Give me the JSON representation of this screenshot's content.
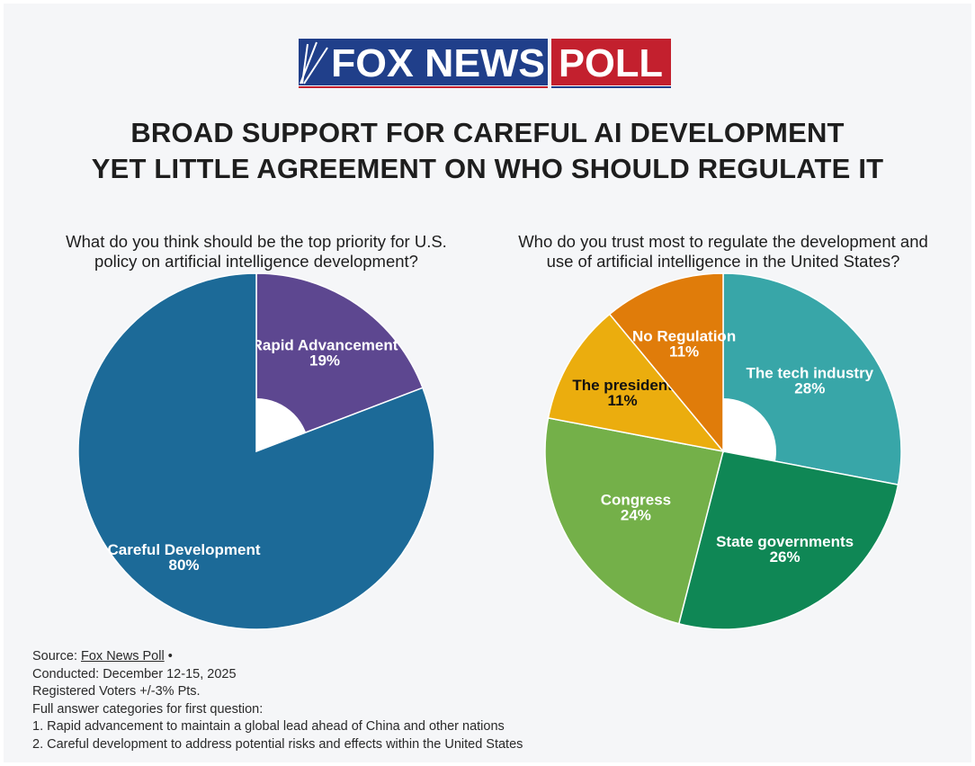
{
  "logo": {
    "brand": "FOX NEWS",
    "tag": "POLL"
  },
  "headline": {
    "line1": "BROAD SUPPORT FOR CAREFUL AI DEVELOPMENT",
    "line2": "YET LITTLE AGREEMENT ON WHO SHOULD REGULATE IT"
  },
  "colors": {
    "careful": "#1c6a98",
    "rapid": "#5d4790",
    "tech": "#38a6a8",
    "state": "#0f8755",
    "congress": "#74b049",
    "president": "#ebad0e",
    "noreg": "#e07c0a",
    "logo_blue": "#203f8a",
    "logo_red": "#c3202e"
  },
  "chart_data": [
    {
      "type": "pie",
      "title": "What do you think should be the top priority for U.S. policy on artificial intelligence development?",
      "title_lines": [
        "What do you think should be the top priority for U.S.",
        "policy on artificial intelligence development?"
      ],
      "categories": [
        "Rapid Advancement",
        "Careful Development"
      ],
      "values": [
        19,
        80
      ],
      "value_labels": [
        "19%",
        "80%"
      ],
      "colors": [
        "#5d4790",
        "#1c6a98"
      ],
      "label_colors": [
        "#ffffff",
        "#ffffff"
      ]
    },
    {
      "type": "pie",
      "title": "Who do you trust most to regulate the development and use of artificial intelligence in the United States?",
      "title_lines": [
        "Who do you trust most to regulate the development and",
        "use of artificial intelligence in the United States?"
      ],
      "categories": [
        "The tech industry",
        "State governments",
        "Congress",
        "The president",
        "No Regulation"
      ],
      "values": [
        28,
        26,
        24,
        11,
        11
      ],
      "value_labels": [
        "28%",
        "26%",
        "24%",
        "11%",
        "11%"
      ],
      "colors": [
        "#38a6a8",
        "#0f8755",
        "#74b049",
        "#ebad0e",
        "#e07c0a"
      ],
      "label_colors": [
        "#ffffff",
        "#ffffff",
        "#ffffff",
        "#111111",
        "#ffffff"
      ]
    }
  ],
  "footer": {
    "source_prefix": "Source: ",
    "source_link": "Fox News Poll",
    "source_suffix": " •",
    "conducted": "Conducted: December 12-15, 2025",
    "voters": "Registered Voters +/-3% Pts.",
    "note_heading": "Full answer categories for first question:",
    "note1": "1. Rapid advancement to maintain a global lead ahead of China and other nations",
    "note2": "2. Careful development to address potential risks and effects within the United States"
  }
}
